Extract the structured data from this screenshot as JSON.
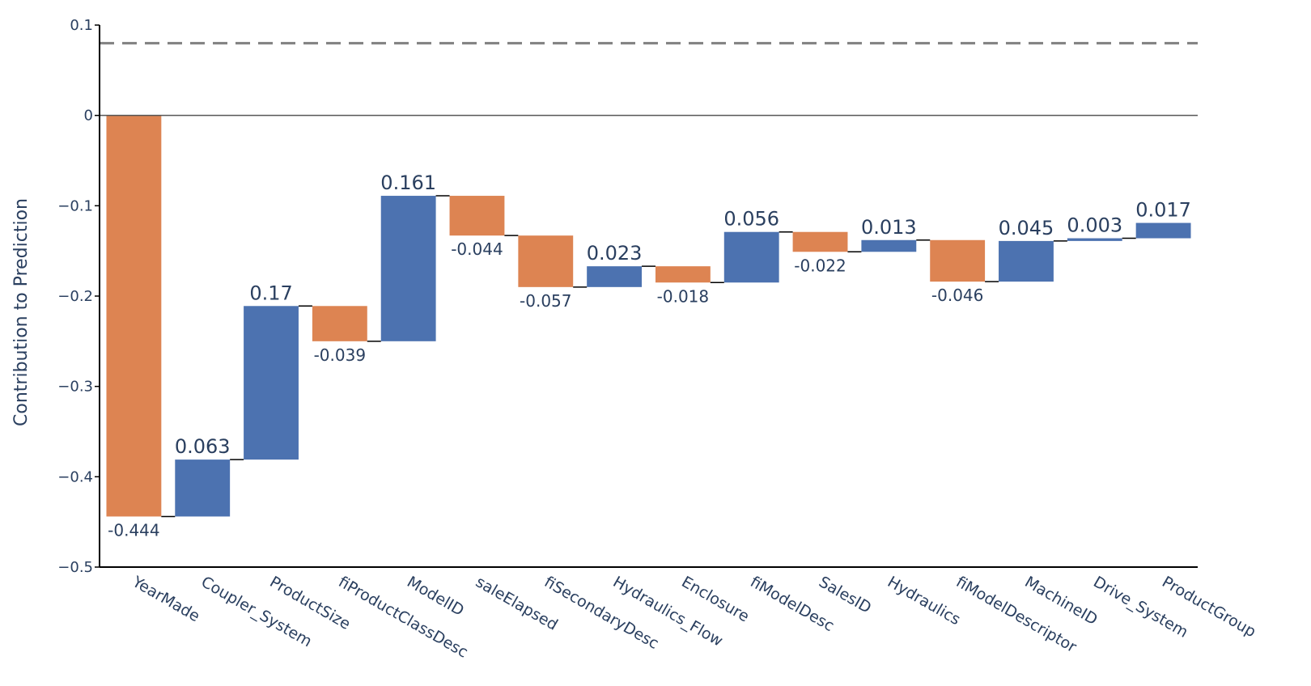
{
  "chart_data": {
    "type": "waterfall",
    "title": "",
    "xlabel": "",
    "ylabel": "Contribution to Prediction",
    "ylim": [
      -0.5,
      0.1
    ],
    "yticks": [
      0.1,
      0,
      -0.1,
      -0.2,
      -0.3,
      -0.4,
      -0.5
    ],
    "ytick_labels": [
      "0.1",
      "0",
      "−0.1",
      "−0.2",
      "−0.3",
      "−0.4",
      "−0.5"
    ],
    "reference_line": 0.08,
    "grid": false,
    "legend": "none",
    "colors": {
      "increase": "#4c72b0",
      "decrease": "#dd8452",
      "connector": "#000000",
      "reference": "#808080",
      "zeroline": "#555555"
    },
    "categories": [
      "YearMade",
      "Coupler_System",
      "ProductSize",
      "fiProductClassDesc",
      "ModelID",
      "saleElapsed",
      "fiSecondaryDesc",
      "Hydraulics_Flow",
      "Enclosure",
      "fiModelDesc",
      "SalesID",
      "Hydraulics",
      "fiModelDescriptor",
      "MachineID",
      "Drive_System",
      "ProductGroup"
    ],
    "values": [
      -0.444,
      0.063,
      0.17,
      -0.039,
      0.161,
      -0.044,
      -0.057,
      0.023,
      -0.018,
      0.056,
      -0.022,
      0.013,
      -0.046,
      0.045,
      0.003,
      0.017
    ],
    "labels": [
      "-0.444",
      "0.063",
      "0.17",
      "-0.039",
      "0.161",
      "-0.044",
      "-0.057",
      "0.023",
      "-0.018",
      "0.056",
      "-0.022",
      "0.013",
      "-0.046",
      "0.045",
      "0.003",
      "0.017"
    ]
  }
}
